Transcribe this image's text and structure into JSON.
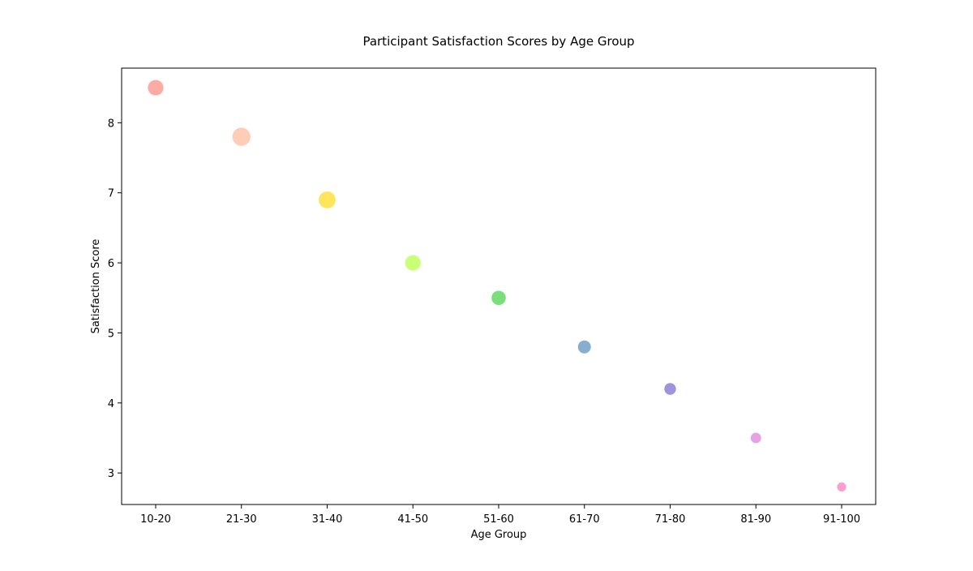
{
  "chart_data": {
    "type": "scatter",
    "title": "Participant Satisfaction Scores by Age Group",
    "xlabel": "Age Group",
    "ylabel": "Satisfaction Score",
    "categories": [
      "10-20",
      "21-30",
      "31-40",
      "41-50",
      "51-60",
      "61-70",
      "71-80",
      "81-90",
      "91-100"
    ],
    "values": [
      8.5,
      7.8,
      6.9,
      6.0,
      5.5,
      4.8,
      4.2,
      3.5,
      2.8
    ],
    "ylim": [
      2.55,
      8.78
    ],
    "yticks": [
      3,
      4,
      5,
      6,
      7,
      8
    ],
    "grid": false,
    "legend": "none",
    "point_colors": [
      "#FA8072",
      "#FFB28F",
      "#FFD700",
      "#ADFF2F",
      "#32CD32",
      "#4682B4",
      "#6A5ACD",
      "#DA70D6",
      "#FF69B4"
    ],
    "point_size_rank": [
      7,
      9,
      8,
      7,
      6,
      5,
      4,
      3,
      2
    ]
  }
}
